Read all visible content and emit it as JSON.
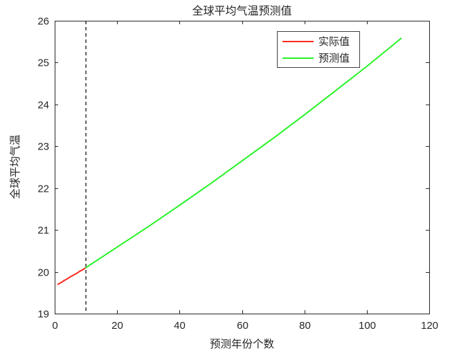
{
  "chart_data": {
    "type": "line",
    "title": "全球平均气温预测值",
    "xlabel": "预测年份个数",
    "ylabel": "全球平均气温",
    "xlim": [
      0,
      120
    ],
    "ylim": [
      19,
      26
    ],
    "xticks": [
      0,
      20,
      40,
      60,
      80,
      100,
      120
    ],
    "yticks": [
      19,
      20,
      21,
      22,
      23,
      24,
      25,
      26
    ],
    "grid": false,
    "legend_position": "upper-right-inside",
    "axis_color": "#262626",
    "series": [
      {
        "name": "实际值",
        "color": "#f8291d",
        "x": [
          1,
          2,
          3,
          4,
          5,
          6,
          7,
          8,
          9,
          10
        ],
        "y": [
          19.7,
          19.74,
          19.79,
          19.83,
          19.88,
          19.92,
          19.96,
          20.01,
          20.05,
          20.1
        ]
      },
      {
        "name": "预测值",
        "color": "#27f227",
        "x": [
          10,
          20,
          30,
          40,
          50,
          60,
          70,
          80,
          90,
          100,
          111
        ],
        "y": [
          20.1,
          20.59,
          21.08,
          21.59,
          22.11,
          22.65,
          23.19,
          23.75,
          24.33,
          24.91,
          25.58
        ]
      }
    ],
    "annotations": [
      {
        "type": "vline",
        "x": 10,
        "style": "dashed",
        "color": "#000000"
      }
    ]
  }
}
